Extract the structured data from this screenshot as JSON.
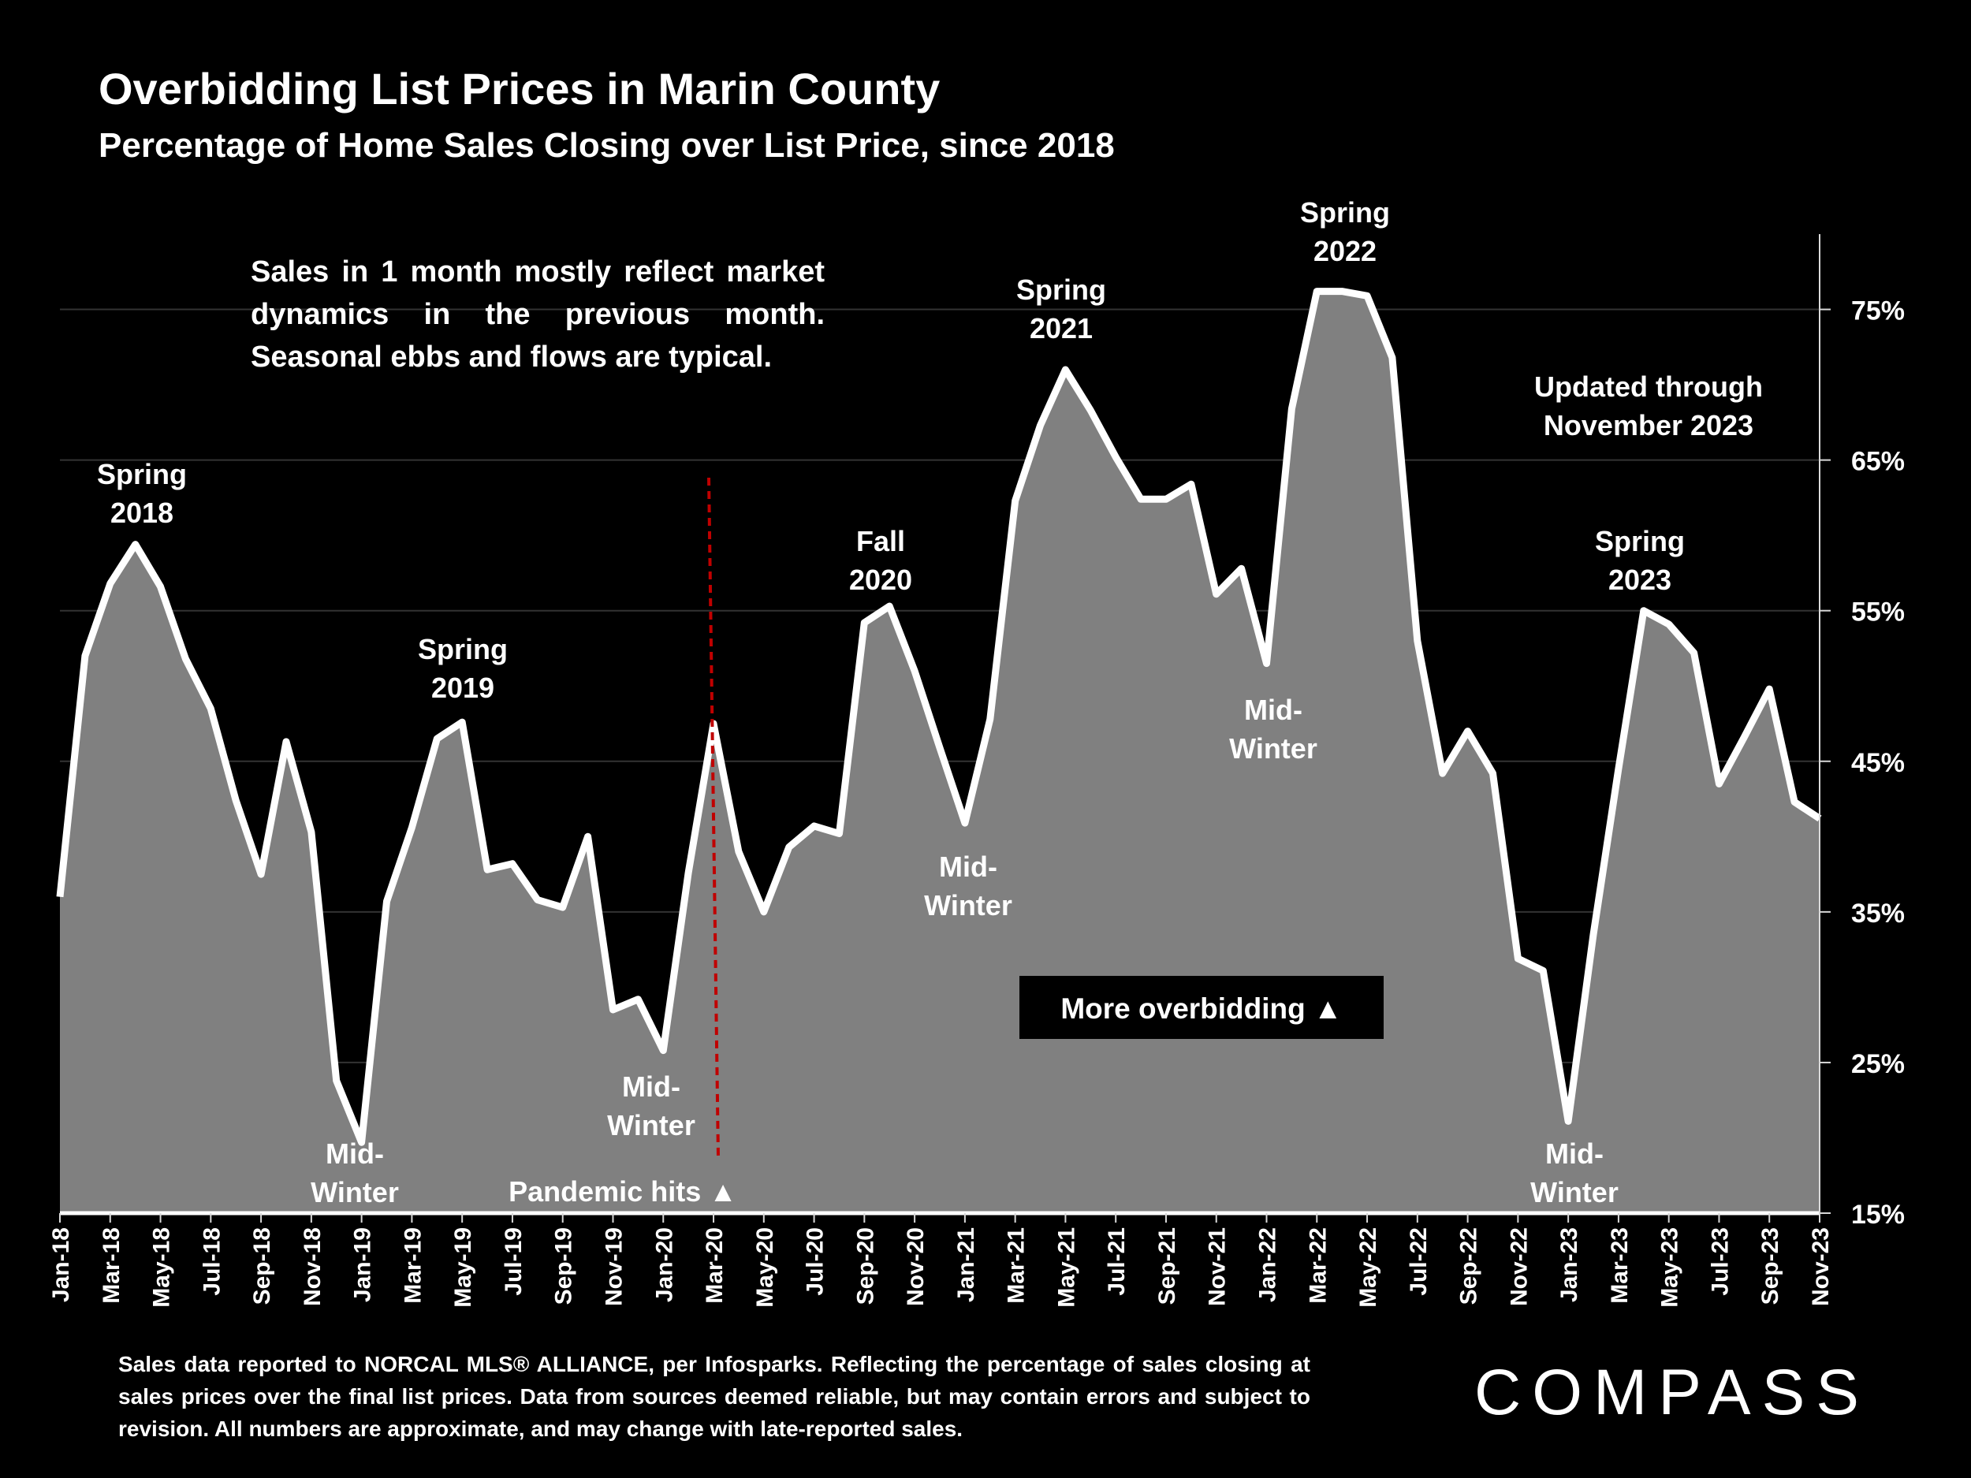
{
  "title": "Overbidding List Prices in Marin County",
  "subtitle": "Percentage of Home Sales Closing over List Price, since 2018",
  "note": "Sales in 1 month mostly reflect market dynamics in the previous month. Seasonal ebbs and flows are typical.",
  "footer": "Sales data reported to NORCAL MLS® ALLIANCE, per Infosparks. Reflecting the percentage of sales closing at sales prices over the final list prices. Data from sources deemed reliable, but may contain errors and subject to revision. All numbers are approximate, and may change with late-reported sales.",
  "brand": "COMPASS",
  "colors": {
    "background": "#000000",
    "area": "#808080",
    "line": "#ffffff",
    "marker": "#c00000",
    "grid": "#333333"
  },
  "chart_data": {
    "type": "area",
    "title": "Overbidding List Prices in Marin County",
    "ylabel": "",
    "xlabel": "",
    "ylim": [
      15,
      80
    ],
    "yticks": [
      15,
      25,
      35,
      45,
      55,
      65,
      75
    ],
    "ytick_labels": [
      "15%",
      "25%",
      "35%",
      "45%",
      "55%",
      "65%",
      "75%"
    ],
    "y_axis_side": "right",
    "x": [
      "Jan-18",
      "Feb-18",
      "Mar-18",
      "Apr-18",
      "May-18",
      "Jun-18",
      "Jul-18",
      "Aug-18",
      "Sep-18",
      "Oct-18",
      "Nov-18",
      "Dec-18",
      "Jan-19",
      "Feb-19",
      "Mar-19",
      "Apr-19",
      "May-19",
      "Jun-19",
      "Jul-19",
      "Aug-19",
      "Sep-19",
      "Oct-19",
      "Nov-19",
      "Dec-19",
      "Jan-20",
      "Feb-20",
      "Mar-20",
      "Apr-20",
      "May-20",
      "Jun-20",
      "Jul-20",
      "Aug-20",
      "Sep-20",
      "Oct-20",
      "Nov-20",
      "Dec-20",
      "Jan-21",
      "Feb-21",
      "Mar-21",
      "Apr-21",
      "May-21",
      "Jun-21",
      "Jul-21",
      "Aug-21",
      "Sep-21",
      "Oct-21",
      "Nov-21",
      "Dec-21",
      "Jan-22",
      "Feb-22",
      "Mar-22",
      "Apr-22",
      "May-22",
      "Jun-22",
      "Jul-22",
      "Aug-22",
      "Sep-22",
      "Oct-22",
      "Nov-22",
      "Dec-22",
      "Jan-23",
      "Feb-23",
      "Mar-23",
      "Apr-23",
      "May-23",
      "Jun-23",
      "Jul-23",
      "Aug-23",
      "Sep-23",
      "Oct-23",
      "Nov-23"
    ],
    "x_tick_labels": [
      "Jan-18",
      "Mar-18",
      "May-18",
      "Jul-18",
      "Sep-18",
      "Nov-18",
      "Jan-19",
      "Mar-19",
      "May-19",
      "Jul-19",
      "Sep-19",
      "Nov-19",
      "Jan-20",
      "Mar-20",
      "May-20",
      "Jul-20",
      "Sep-20",
      "Nov-20",
      "Jan-21",
      "Mar-21",
      "May-21",
      "Jul-21",
      "Sep-21",
      "Nov-21",
      "Jan-22",
      "Mar-22",
      "May-22",
      "Jul-22",
      "Sep-22",
      "Nov-22",
      "Jan-23",
      "Mar-23",
      "May-23",
      "Jul-23",
      "Sep-23",
      "Nov-23"
    ],
    "series": [
      {
        "name": "% of sales over list price",
        "values": [
          36,
          52,
          56.8,
          59.4,
          56.6,
          51.8,
          48.5,
          42.4,
          37.5,
          46.3,
          40.3,
          23.8,
          19.7,
          35.7,
          40.6,
          46.5,
          47.6,
          37.8,
          38.2,
          35.8,
          35.3,
          40,
          28.5,
          29.2,
          25.8,
          37.6,
          47.5,
          39,
          35,
          39.3,
          40.7,
          40.2,
          54.2,
          55.3,
          51,
          45.9,
          40.9,
          47.8,
          62.3,
          67.3,
          71,
          68.3,
          65.2,
          62.4,
          62.4,
          63.4,
          56.1,
          57.8,
          51.5,
          68.4,
          76.2,
          76.2,
          75.9,
          71.8,
          53,
          44.2,
          47,
          44.2,
          31.9,
          31.1,
          21.1,
          33.5,
          44.5,
          55,
          54.1,
          52.2,
          43.5,
          46.6,
          49.8,
          42.3,
          41.2
        ]
      }
    ],
    "annotations": [
      {
        "label": "Spring 2018",
        "lines": [
          "Spring",
          "2018"
        ],
        "month": "Apr-18"
      },
      {
        "label": "Mid-Winter",
        "lines": [
          "Mid-",
          "Winter"
        ],
        "month": "Jan-19"
      },
      {
        "label": "Spring 2019",
        "lines": [
          "Spring",
          "2019"
        ],
        "month": "May-19"
      },
      {
        "label": "Mid-Winter",
        "lines": [
          "Mid-",
          "Winter"
        ],
        "month": "Jan-20"
      },
      {
        "label": "Fall 2020",
        "lines": [
          "Fall",
          "2020"
        ],
        "month": "Oct-20"
      },
      {
        "label": "Mid-Winter",
        "lines": [
          "Mid-",
          "Winter"
        ],
        "month": "Jan-21"
      },
      {
        "label": "Spring 2021",
        "lines": [
          "Spring",
          "2021"
        ],
        "month": "May-21"
      },
      {
        "label": "Mid-Winter",
        "lines": [
          "Mid-",
          "Winter"
        ],
        "month": "Jan-22"
      },
      {
        "label": "Spring 2022",
        "lines": [
          "Spring",
          "2022"
        ],
        "month": "Apr-22"
      },
      {
        "label": "Updated through November 2023",
        "lines": [
          "Updated through",
          "November 2023"
        ],
        "month": "Jul-23"
      },
      {
        "label": "Spring 2023",
        "lines": [
          "Spring",
          "2023"
        ],
        "month": "Apr-23"
      },
      {
        "label": "Mid-Winter",
        "lines": [
          "Mid-",
          "Winter"
        ],
        "month": "Jan-23"
      }
    ],
    "pandemic_marker": {
      "month": "Mar-20",
      "label": "Pandemic hits ▲"
    },
    "callout": {
      "label": "More overbidding ▲"
    }
  }
}
